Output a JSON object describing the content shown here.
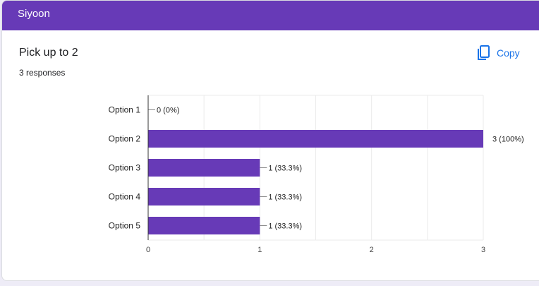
{
  "header": {
    "title": "Siyoon"
  },
  "question": {
    "title": "Pick up to 2",
    "responses": "3 responses",
    "copy_label": "Copy",
    "copy_icon": "copy-icon"
  },
  "colors": {
    "bar": "#673ab7",
    "accent": "#1a73e8"
  },
  "chart_data": {
    "type": "bar",
    "orientation": "horizontal",
    "categories": [
      "Option 1",
      "Option 2",
      "Option 3",
      "Option 4",
      "Option 5"
    ],
    "values": [
      0,
      3,
      1,
      1,
      1
    ],
    "labels": [
      "0 (0%)",
      "3 (100%)",
      "1 (33.3%)",
      "1 (33.3%)",
      "1 (33.3%)"
    ],
    "xlim": [
      0,
      3
    ],
    "xticks": [
      0,
      1,
      2,
      3
    ],
    "grid": true,
    "title": "",
    "xlabel": "",
    "ylabel": ""
  }
}
